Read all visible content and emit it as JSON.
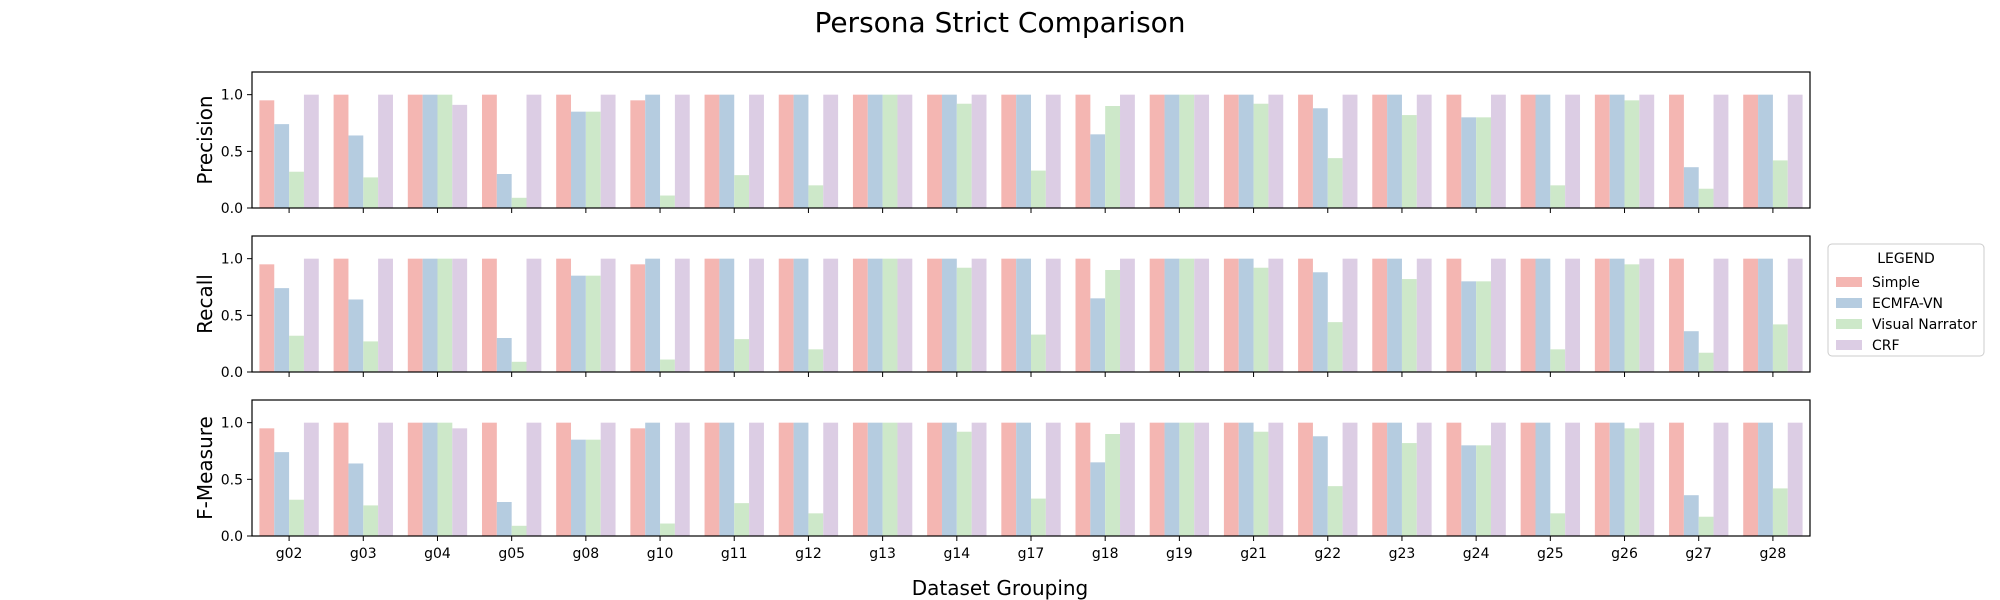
{
  "chart_data": {
    "type": "bar",
    "title": "Persona Strict Comparison",
    "xlabel": "Dataset Grouping",
    "categories": [
      "g02",
      "g03",
      "g04",
      "g05",
      "g08",
      "g10",
      "g11",
      "g12",
      "g13",
      "g14",
      "g17",
      "g18",
      "g19",
      "g21",
      "g22",
      "g23",
      "g24",
      "g25",
      "g26",
      "g27",
      "g28"
    ],
    "ylim": [
      0,
      1.2
    ],
    "yticks": [
      "0.0",
      "0.5",
      "1.0"
    ],
    "legend": {
      "title": "LEGEND",
      "placement": "right",
      "entries": [
        "Simple",
        "ECMFA-VN",
        "Visual Narrator",
        "CRF"
      ]
    },
    "colors": {
      "Simple": "#f4b6b2",
      "ECMFA-VN": "#b5cce0",
      "Visual Narrator": "#cde8c9",
      "CRF": "#dccde4"
    },
    "panels": [
      {
        "ylabel": "Precision",
        "series": [
          {
            "name": "Simple",
            "values": [
              0.95,
              1,
              1,
              1,
              1,
              0.95,
              1,
              1,
              1,
              1,
              1,
              1,
              1,
              1,
              1,
              1,
              1,
              1,
              1,
              1,
              1
            ]
          },
          {
            "name": "ECMFA-VN",
            "values": [
              0.74,
              0.64,
              1,
              0.3,
              0.85,
              1,
              1,
              1,
              1,
              1,
              1,
              0.65,
              1,
              1,
              0.88,
              1,
              0.8,
              1,
              1,
              0.36,
              1
            ]
          },
          {
            "name": "Visual Narrator",
            "values": [
              0.32,
              0.27,
              1,
              0.09,
              0.85,
              0.11,
              0.29,
              0.2,
              1,
              0.92,
              0.33,
              0.9,
              1,
              0.92,
              0.44,
              0.82,
              0.8,
              0.2,
              0.95,
              0.17,
              0.42
            ]
          },
          {
            "name": "CRF",
            "values": [
              1,
              1,
              0.91,
              1,
              1,
              1,
              1,
              1,
              1,
              1,
              1,
              1,
              1,
              1,
              1,
              1,
              1,
              1,
              1,
              1,
              1
            ]
          }
        ]
      },
      {
        "ylabel": "Recall",
        "series": [
          {
            "name": "Simple",
            "values": [
              0.95,
              1,
              1,
              1,
              1,
              0.95,
              1,
              1,
              1,
              1,
              1,
              1,
              1,
              1,
              1,
              1,
              1,
              1,
              1,
              1,
              1
            ]
          },
          {
            "name": "ECMFA-VN",
            "values": [
              0.74,
              0.64,
              1,
              0.3,
              0.85,
              1,
              1,
              1,
              1,
              1,
              1,
              0.65,
              1,
              1,
              0.88,
              1,
              0.8,
              1,
              1,
              0.36,
              1
            ]
          },
          {
            "name": "Visual Narrator",
            "values": [
              0.32,
              0.27,
              1,
              0.09,
              0.85,
              0.11,
              0.29,
              0.2,
              1,
              0.92,
              0.33,
              0.9,
              1,
              0.92,
              0.44,
              0.82,
              0.8,
              0.2,
              0.95,
              0.17,
              0.42
            ]
          },
          {
            "name": "CRF",
            "values": [
              1,
              1,
              1,
              1,
              1,
              1,
              1,
              1,
              1,
              1,
              1,
              1,
              1,
              1,
              1,
              1,
              1,
              1,
              1,
              1,
              1
            ]
          }
        ]
      },
      {
        "ylabel": "F-Measure",
        "series": [
          {
            "name": "Simple",
            "values": [
              0.95,
              1,
              1,
              1,
              1,
              0.95,
              1,
              1,
              1,
              1,
              1,
              1,
              1,
              1,
              1,
              1,
              1,
              1,
              1,
              1,
              1
            ]
          },
          {
            "name": "ECMFA-VN",
            "values": [
              0.74,
              0.64,
              1,
              0.3,
              0.85,
              1,
              1,
              1,
              1,
              1,
              1,
              0.65,
              1,
              1,
              0.88,
              1,
              0.8,
              1,
              1,
              0.36,
              1
            ]
          },
          {
            "name": "Visual Narrator",
            "values": [
              0.32,
              0.27,
              1,
              0.09,
              0.85,
              0.11,
              0.29,
              0.2,
              1,
              0.92,
              0.33,
              0.9,
              1,
              0.92,
              0.44,
              0.82,
              0.8,
              0.2,
              0.95,
              0.17,
              0.42
            ]
          },
          {
            "name": "CRF",
            "values": [
              1,
              1,
              0.95,
              1,
              1,
              1,
              1,
              1,
              1,
              1,
              1,
              1,
              1,
              1,
              1,
              1,
              1,
              1,
              1,
              1,
              1
            ]
          }
        ]
      }
    ]
  }
}
